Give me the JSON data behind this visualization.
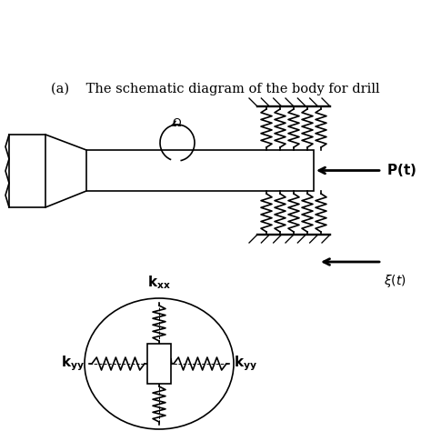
{
  "bg_color": "#ffffff",
  "label_color": "#000000",
  "caption": "(a)    The schematic diagram of the body for drill",
  "caption_fontsize": 10.5,
  "fig_width": 4.74,
  "fig_height": 4.74,
  "dpi": 100,
  "lw": 1.2,
  "spring_amplitude": 0.06
}
